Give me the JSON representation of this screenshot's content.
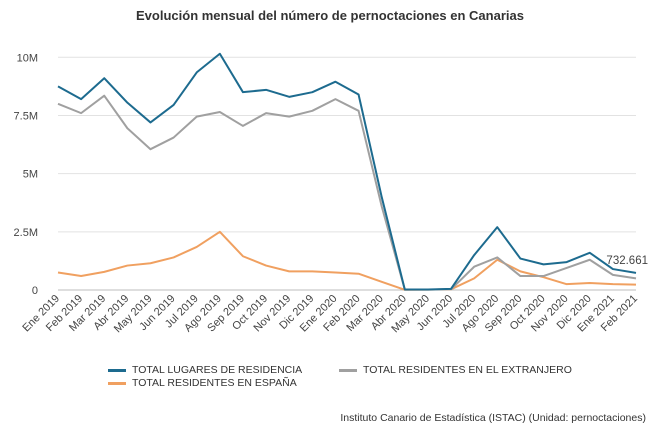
{
  "chart_data": {
    "type": "line",
    "title": "Evolución mensual del número de pernoctaciones en Canarias",
    "categories": [
      "Ene 2019",
      "Feb 2019",
      "Mar 2019",
      "Abr 2019",
      "May 2019",
      "Jun 2019",
      "Jul 2019",
      "Ago 2019",
      "Sep 2019",
      "Oct 2019",
      "Nov 2019",
      "Dic 2019",
      "Ene 2020",
      "Feb 2020",
      "Mar 2020",
      "Abr 2020",
      "May 2020",
      "Jun 2020",
      "Jul 2020",
      "Ago 2020",
      "Sep 2020",
      "Oct 2020",
      "Nov 2020",
      "Dic 2020",
      "Ene 2021",
      "Feb 2021"
    ],
    "y_ticks": [
      {
        "value": 0,
        "label": "0"
      },
      {
        "value": 2500000,
        "label": "2.5M"
      },
      {
        "value": 5000000,
        "label": "5M"
      },
      {
        "value": 7500000,
        "label": "7.5M"
      },
      {
        "value": 10000000,
        "label": "10M"
      }
    ],
    "ylim": [
      0,
      11000000
    ],
    "grid": true,
    "legend_position": "bottom",
    "series": [
      {
        "name": "TOTAL LUGARES DE RESIDENCIA",
        "color": "#1d6b8f",
        "values": [
          8750000,
          8200000,
          9100000,
          8050000,
          7200000,
          7950000,
          9350000,
          10150000,
          8500000,
          8600000,
          8300000,
          8500000,
          8950000,
          8400000,
          4000000,
          20000,
          20000,
          50000,
          1500000,
          2700000,
          1350000,
          1100000,
          1200000,
          1600000,
          900000,
          732661
        ]
      },
      {
        "name": "TOTAL RESIDENTES EN EL EXTRANJERO",
        "color": "#a0a0a0",
        "values": [
          8000000,
          7600000,
          8350000,
          6950000,
          6050000,
          6550000,
          7450000,
          7650000,
          7050000,
          7600000,
          7450000,
          7700000,
          8200000,
          7700000,
          3600000,
          15000,
          15000,
          30000,
          1000000,
          1400000,
          600000,
          600000,
          950000,
          1300000,
          650000,
          500000
        ]
      },
      {
        "name": "TOTAL RESIDENTES EN ESPAÑA",
        "color": "#f0a060",
        "values": [
          750000,
          600000,
          780000,
          1050000,
          1150000,
          1400000,
          1850000,
          2500000,
          1450000,
          1050000,
          800000,
          800000,
          750000,
          700000,
          350000,
          10000,
          15000,
          30000,
          500000,
          1300000,
          800000,
          550000,
          250000,
          300000,
          250000,
          230000
        ]
      }
    ],
    "annotations": [
      {
        "series": 0,
        "index": 25,
        "label": "732.661"
      }
    ]
  },
  "source": "Instituto Canario de Estadística (ISTAC) (Unidad: pernoctaciones)"
}
